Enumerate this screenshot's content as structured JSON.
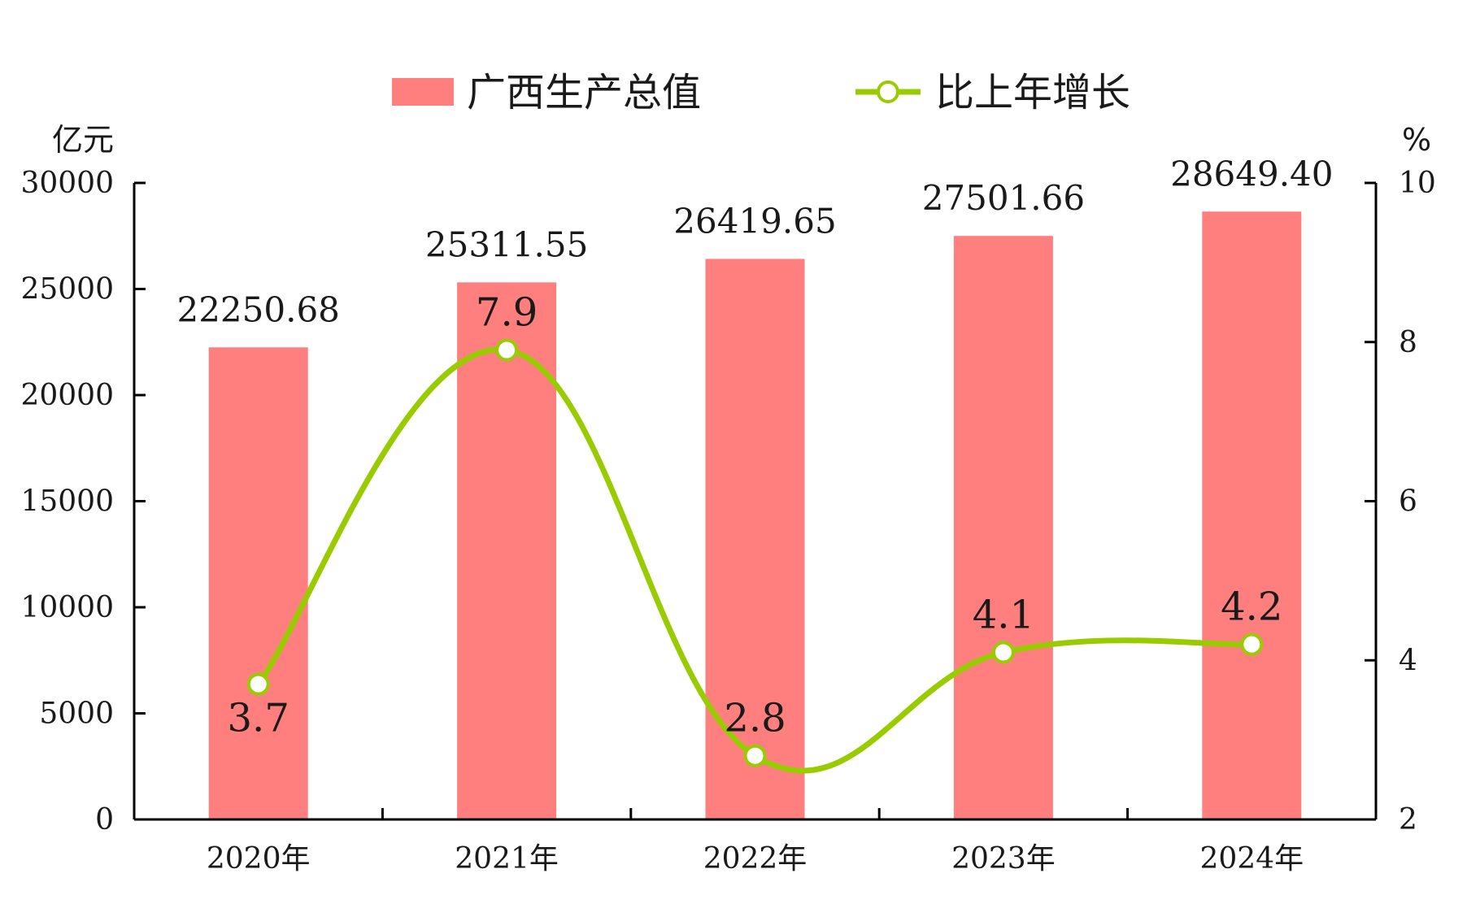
{
  "chart_data": {
    "type": "bar",
    "categories": [
      "2020年",
      "2021年",
      "2022年",
      "2023年",
      "2024年"
    ],
    "series": [
      {
        "name": "广西生产总值",
        "type": "bar",
        "axis": "left",
        "values": [
          22250.68,
          25311.55,
          26419.65,
          27501.66,
          28649.4
        ],
        "labels": [
          "22250.68",
          "25311.55",
          "26419.65",
          "27501.66",
          "28649.40"
        ],
        "color": "#ff7f7f"
      },
      {
        "name": "比上年增长",
        "type": "line",
        "axis": "right",
        "values": [
          3.7,
          7.9,
          2.8,
          4.1,
          4.2
        ],
        "labels": [
          "3.7",
          "7.9",
          "2.8",
          "4.1",
          "4.2"
        ],
        "color": "#99cc00"
      }
    ],
    "y_left": {
      "unit": "亿元",
      "range": [
        0,
        30000
      ],
      "ticks": [
        0,
        5000,
        10000,
        15000,
        20000,
        25000,
        30000
      ],
      "tick_labels": [
        "0",
        "5000",
        "10000",
        "15000",
        "20000",
        "25000",
        "30000"
      ]
    },
    "y_right": {
      "unit": "%",
      "range": [
        2,
        10
      ],
      "ticks": [
        2,
        4,
        6,
        8,
        10
      ],
      "tick_labels": [
        "2",
        "4",
        "6",
        "8",
        "10"
      ]
    },
    "legend_position": "top-center",
    "grid": false
  }
}
